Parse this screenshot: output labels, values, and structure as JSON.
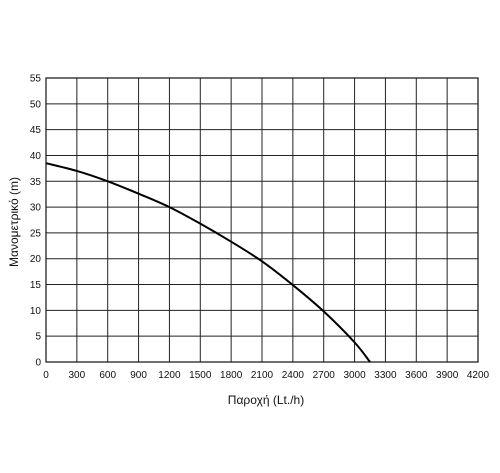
{
  "chart_data": {
    "type": "line",
    "title": "",
    "xlabel": "Παροχή (Lt./h)",
    "ylabel": "Μανομετρικό (m)",
    "xlim": [
      0,
      4200
    ],
    "ylim": [
      0,
      55
    ],
    "xticks": [
      0,
      300,
      600,
      900,
      1200,
      1500,
      1800,
      2100,
      2400,
      2700,
      3000,
      3300,
      3600,
      3900,
      4200
    ],
    "yticks": [
      0,
      5,
      10,
      15,
      20,
      25,
      30,
      35,
      40,
      45,
      50,
      55
    ],
    "grid": true,
    "legend": "none",
    "series": [
      {
        "x": [
          0,
          300,
          600,
          900,
          1200,
          1500,
          1800,
          2100,
          2400,
          2700,
          3000,
          3150
        ],
        "y": [
          38.5,
          37.0,
          35.0,
          32.6,
          30.0,
          26.8,
          23.3,
          19.5,
          14.9,
          9.8,
          3.8,
          0
        ],
        "color": "#000000"
      }
    ]
  }
}
